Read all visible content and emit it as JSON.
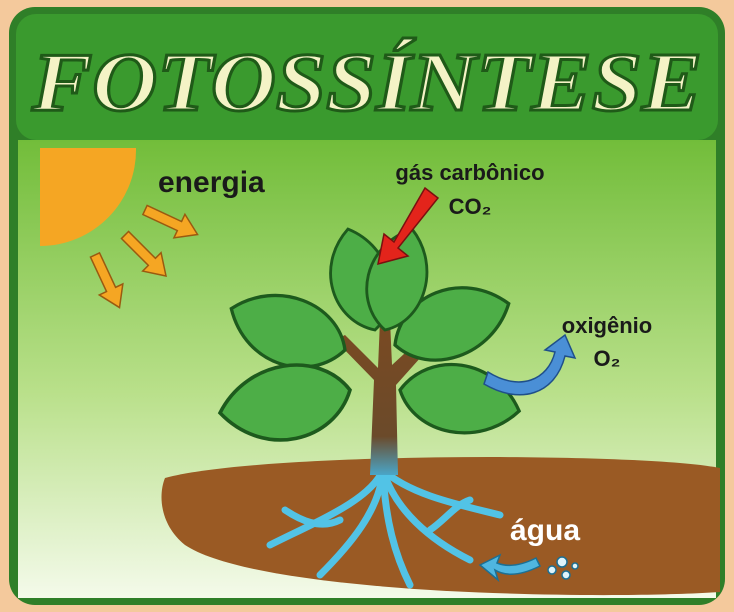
{
  "header": {
    "title": "FOTOSSÍNTESE"
  },
  "labels": {
    "energy": "energia",
    "carbon_dioxide": "gás carbônico",
    "carbon_dioxide_formula": "CO₂",
    "oxygen": "oxigênio",
    "oxygen_formula": "O₂",
    "water": "água"
  }
}
